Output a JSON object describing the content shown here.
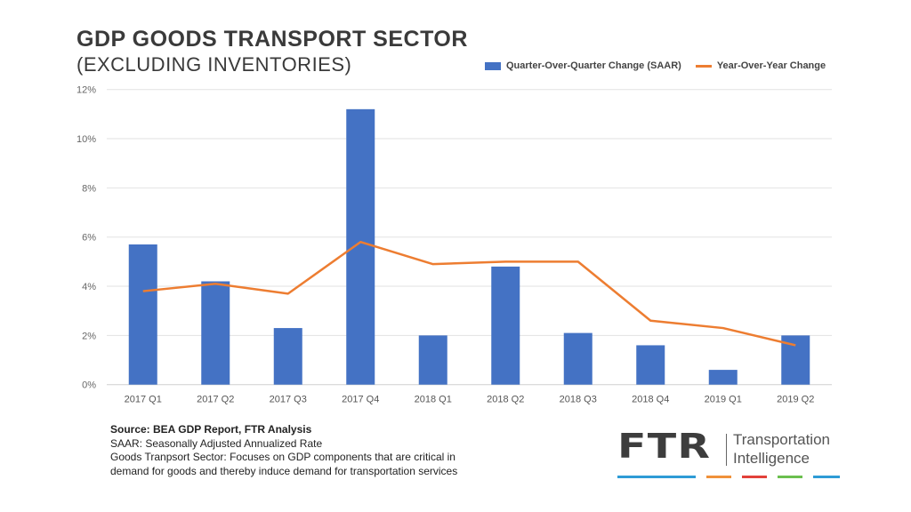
{
  "chart_data": {
    "type": "bar+line",
    "title": "GDP GOODS TRANSPORT SECTOR",
    "subtitle": "(EXCLUDING INVENTORIES)",
    "categories": [
      "2017 Q1",
      "2017 Q2",
      "2017 Q3",
      "2017 Q4",
      "2018 Q1",
      "2018 Q2",
      "2018 Q3",
      "2018 Q4",
      "2019 Q1",
      "2019 Q2"
    ],
    "series": [
      {
        "name": "Quarter-Over-Quarter Change (SAAR)",
        "type": "bar",
        "color": "#4472c4",
        "values": [
          5.7,
          4.2,
          2.3,
          11.2,
          2.0,
          4.8,
          2.1,
          1.6,
          0.6,
          2.0
        ]
      },
      {
        "name": "Year-Over-Year Change",
        "type": "line",
        "color": "#ed7d31",
        "values": [
          3.8,
          4.1,
          3.7,
          5.8,
          4.9,
          5.0,
          5.0,
          2.6,
          2.3,
          1.6
        ]
      }
    ],
    "ylim": [
      0,
      12
    ],
    "yticks": [
      "0%",
      "2%",
      "4%",
      "6%",
      "8%",
      "10%",
      "12%"
    ],
    "grid": true,
    "legend": "top-right"
  },
  "notes": {
    "source": "Source: BEA GDP Report, FTR Analysis",
    "saar": "SAAR: Seasonally Adjusted Annualized Rate",
    "sector_line1": "Goods Tranpsort Sector: Focuses on GDP components that are critical in",
    "sector_line2": "demand for goods and thereby induce demand for transportation services"
  },
  "logo": {
    "mark": "FTR",
    "line1": "Transportation",
    "line2": "Intelligence",
    "stripe_colors": [
      "#2e9bd6",
      "#f0913a",
      "#e2413a",
      "#6bbf4e",
      "#2e9bd6"
    ]
  }
}
